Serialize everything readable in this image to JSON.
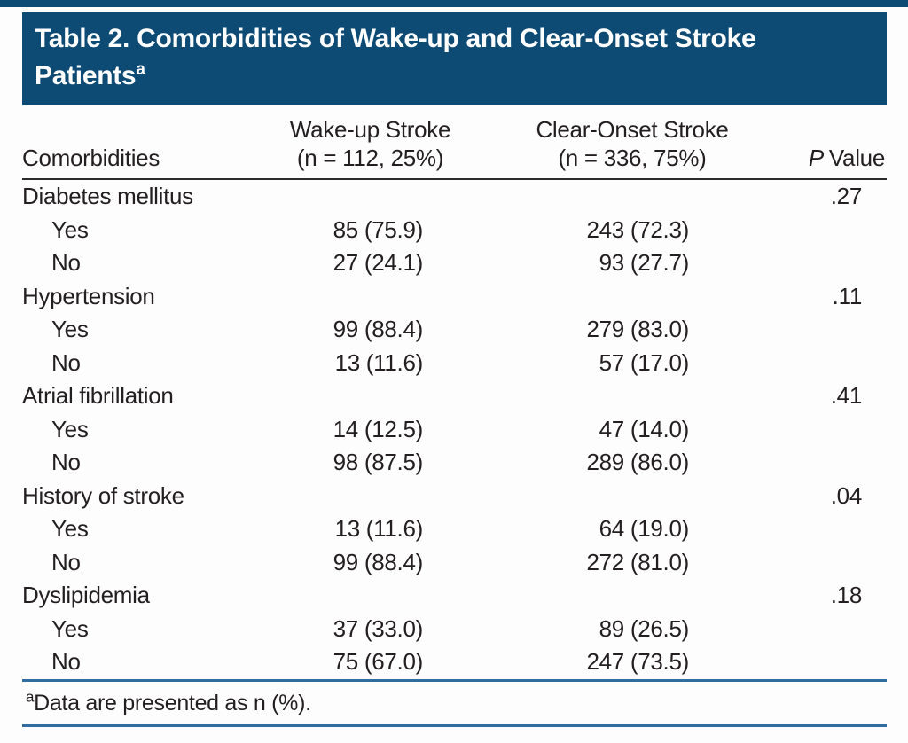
{
  "colors": {
    "header_bg": "#0e4b74",
    "title_text": "#ffffff",
    "body_text": "#231f20",
    "header_rule": "#2b2b2b",
    "accent_rule_blue": "#306c9f"
  },
  "table_title": {
    "line1": "Table 2. Comorbidities of Wake-up and Clear-Onset Stroke",
    "line2": "Patients",
    "superscript": "a"
  },
  "columns": {
    "comorbidities": "Comorbidities",
    "wakeup": {
      "line1": "Wake-up Stroke",
      "line2": "(n = 112, 25%)"
    },
    "clear_onset": {
      "line1": "Clear-Onset Stroke",
      "line2": "(n = 336, 75%)"
    },
    "p_value": {
      "italic": "P",
      "text": "Value"
    }
  },
  "groups": [
    {
      "label": "Diabetes mellitus",
      "p": ".27",
      "rows": [
        {
          "label": "Yes",
          "wakeup": "85 (75.9)",
          "clear": "243 (72.3)"
        },
        {
          "label": "No",
          "wakeup": "27 (24.1)",
          "clear": "93 (27.7)"
        }
      ]
    },
    {
      "label": "Hypertension",
      "p": ".11",
      "rows": [
        {
          "label": "Yes",
          "wakeup": "99 (88.4)",
          "clear": "279 (83.0)"
        },
        {
          "label": "No",
          "wakeup": "13 (11.6)",
          "clear": "57 (17.0)"
        }
      ]
    },
    {
      "label": "Atrial fibrillation",
      "p": ".41",
      "rows": [
        {
          "label": "Yes",
          "wakeup": "14 (12.5)",
          "clear": "47 (14.0)"
        },
        {
          "label": "No",
          "wakeup": "98 (87.5)",
          "clear": "289 (86.0)"
        }
      ]
    },
    {
      "label": "History of stroke",
      "p": ".04",
      "rows": [
        {
          "label": "Yes",
          "wakeup": "13 (11.6)",
          "clear": "64 (19.0)"
        },
        {
          "label": "No",
          "wakeup": "99 (88.4)",
          "clear": "272 (81.0)"
        }
      ]
    },
    {
      "label": "Dyslipidemia",
      "p": ".18",
      "rows": [
        {
          "label": "Yes",
          "wakeup": "37 (33.0)",
          "clear": "89 (26.5)"
        },
        {
          "label": "No",
          "wakeup": "75 (67.0)",
          "clear": "247 (73.5)"
        }
      ]
    }
  ],
  "footnote": {
    "marker": "a",
    "text": "Data are presented as n (%)."
  }
}
